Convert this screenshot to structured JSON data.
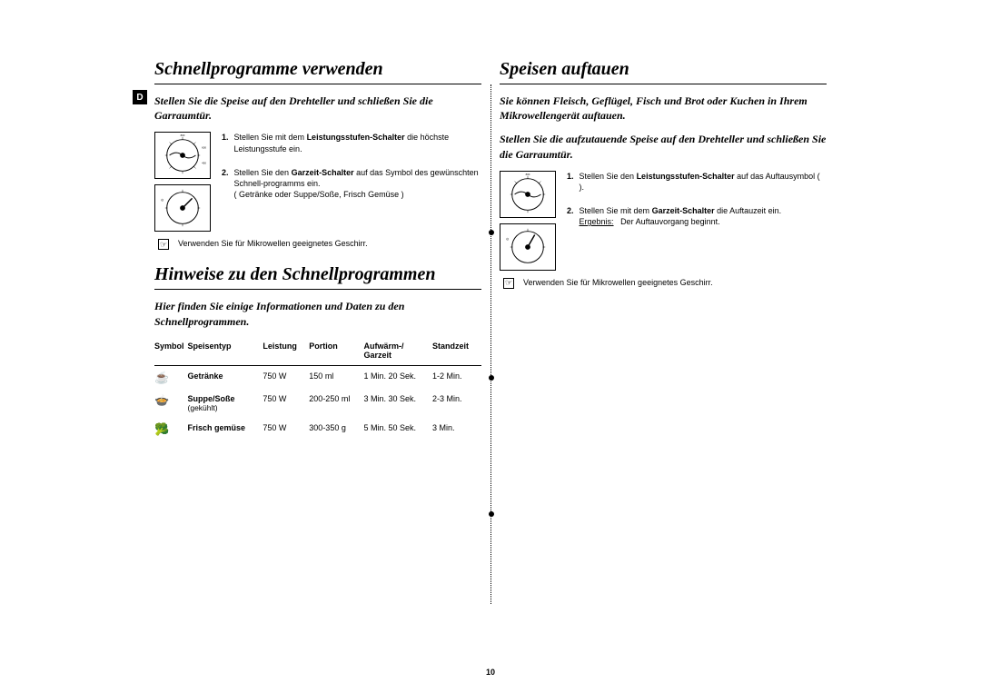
{
  "lang_badge": "D",
  "page_number": "10",
  "left": {
    "section1_title": "Schnellprogramme verwenden",
    "intro1": "Stellen Sie die Speise auf den Drehteller und schließen Sie die Garraumtür.",
    "step1_num": "1.",
    "step1_a": "Stellen Sie mit dem ",
    "step1_b": "Leistungsstufen-Schalter",
    "step1_c": " die höchste Leistungsstufe ein.",
    "step2_num": "2.",
    "step2_a": "Stellen Sie den ",
    "step2_b": "Garzeit-Schalter",
    "step2_c": " auf das Symbol des gewünschten Schnell-programms ein.",
    "step2_d": "( Getränke oder Suppe/Soße, Frisch Gemüse )",
    "note1_icon": "☞",
    "note1": "Verwenden Sie für Mikrowellen geeignetes Geschirr.",
    "section2_title": "Hinweise zu den Schnellprogrammen",
    "intro2": "Hier finden Sie einige Informationen und Daten zu den Schnellprogrammen.",
    "table": {
      "headers": {
        "symbol": "Symbol",
        "type": "Speisentyp",
        "power": "Leistung",
        "portion": "Portion",
        "time": "Aufwärm-/\nGarzeit",
        "stand": "Standzeit"
      },
      "rows": [
        {
          "sym": "☕",
          "type": "Getränke",
          "sub": "",
          "power": "750 W",
          "portion": "150 ml",
          "time": "1 Min. 20 Sek.",
          "stand": "1-2 Min."
        },
        {
          "sym": "🍲",
          "type": "Suppe/Soße",
          "sub": "(gekühlt)",
          "power": "750 W",
          "portion": "200-250 ml",
          "time": "3 Min. 30 Sek.",
          "stand": "2-3 Min."
        },
        {
          "sym": "🥦",
          "type": "Frisch gemüse",
          "sub": "",
          "power": "750 W",
          "portion": "300-350 g",
          "time": "5 Min. 50 Sek.",
          "stand": "3 Min."
        }
      ]
    }
  },
  "right": {
    "section_title": "Speisen auftauen",
    "intro1": "Sie können Fleisch, Geflügel, Fisch und Brot oder Kuchen in Ihrem Mikrowellengerät auftauen.",
    "intro2": "Stellen Sie die aufzutauende Speise auf den Drehteller und schließen Sie die Garraumtür.",
    "step1_num": "1.",
    "step1_a": "Stellen Sie den ",
    "step1_b": "Leistungsstufen-Schalter",
    "step1_c": " auf das Auftausymbol (    ).",
    "step2_num": "2.",
    "step2_a": "Stellen Sie mit dem ",
    "step2_b": "Garzeit-Schalter",
    "step2_c": " die Auftauzeit ein.",
    "step2_result_label": "Ergebnis:",
    "step2_result": "Der Auftauvorgang beginnt.",
    "note_icon": "☞",
    "note": "Verwenden Sie für Mikrowellen geeignetes Geschirr."
  }
}
